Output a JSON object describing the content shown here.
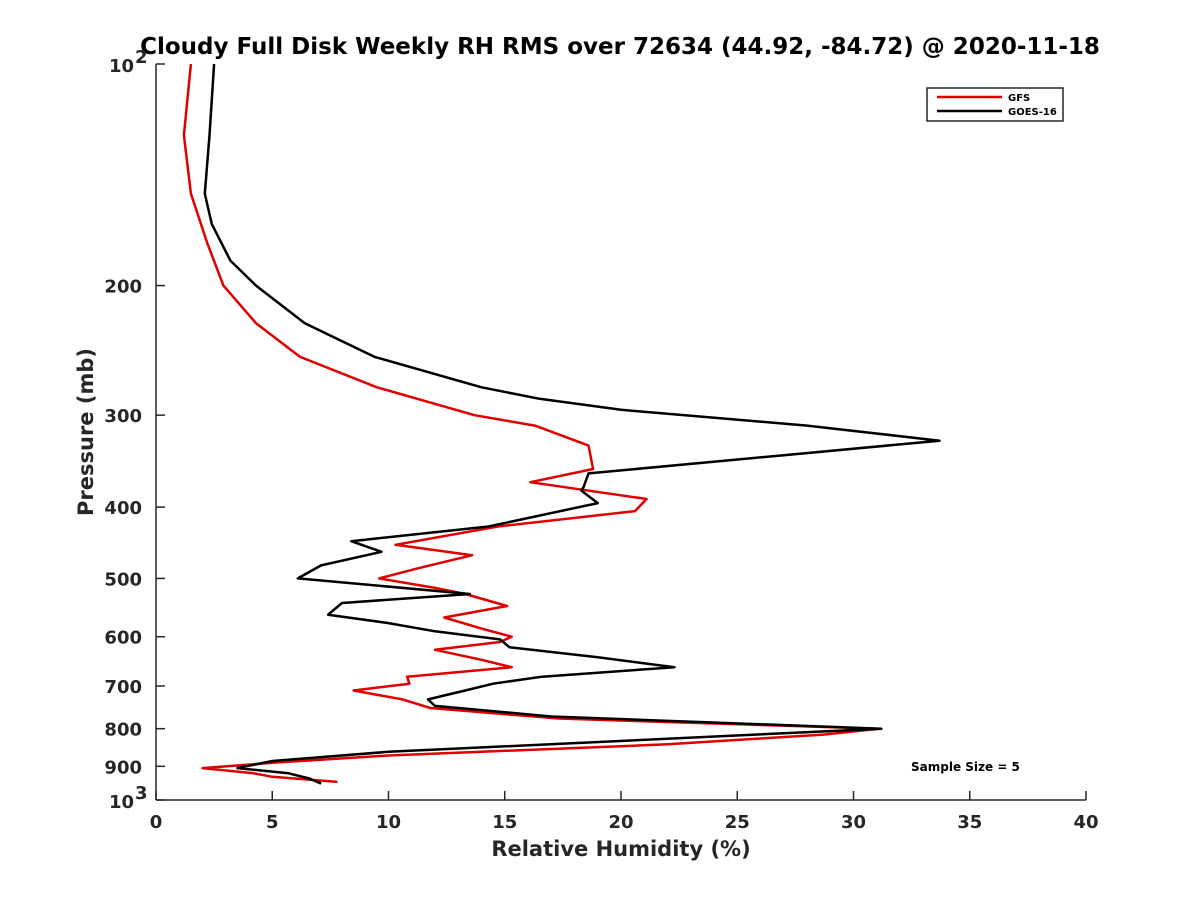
{
  "chart_data": {
    "type": "line",
    "title": "Cloudy Full Disk Weekly RH RMS over 72634 (44.92, -84.72) @ 2020-11-18",
    "xlabel": "Relative Humidity (%)",
    "ylabel": "Pressure (mb)",
    "xlim": [
      0,
      40
    ],
    "ylim": [
      100,
      1000
    ],
    "y_scale": "log",
    "y_reversed": true,
    "grid": false,
    "legend_position": "top-right",
    "x_ticks": [
      "0",
      "5",
      "10",
      "15",
      "20",
      "25",
      "30",
      "35",
      "40"
    ],
    "y_ticks": [
      {
        "value": 100,
        "base": "10",
        "exp": "2"
      },
      {
        "value": 200,
        "label": "200"
      },
      {
        "value": 300,
        "label": "300"
      },
      {
        "value": 400,
        "label": "400"
      },
      {
        "value": 500,
        "label": "500"
      },
      {
        "value": 600,
        "label": "600"
      },
      {
        "value": 700,
        "label": "700"
      },
      {
        "value": 800,
        "label": "800"
      },
      {
        "value": 900,
        "label": "900"
      },
      {
        "value": 1000,
        "base": "10",
        "exp": "3"
      }
    ],
    "annotation": "Sample Size = 5",
    "series": [
      {
        "name": "GFS",
        "color": "#e00000",
        "points": [
          [
            1.5,
            100
          ],
          [
            1.2,
            125
          ],
          [
            1.5,
            150
          ],
          [
            2.2,
            175
          ],
          [
            2.9,
            200
          ],
          [
            4.3,
            225
          ],
          [
            6.2,
            250
          ],
          [
            9.5,
            275
          ],
          [
            13.7,
            300
          ],
          [
            16.3,
            310
          ],
          [
            18.6,
            330
          ],
          [
            18.8,
            355
          ],
          [
            16.1,
            370
          ],
          [
            21.1,
            390
          ],
          [
            20.6,
            405
          ],
          [
            14.7,
            425
          ],
          [
            10.3,
            450
          ],
          [
            13.6,
            465
          ],
          [
            11.2,
            485
          ],
          [
            9.6,
            500
          ],
          [
            12.0,
            515
          ],
          [
            13.3,
            525
          ],
          [
            15.1,
            545
          ],
          [
            12.4,
            565
          ],
          [
            14.0,
            585
          ],
          [
            15.3,
            600
          ],
          [
            14.8,
            610
          ],
          [
            12.0,
            625
          ],
          [
            14.0,
            645
          ],
          [
            15.3,
            660
          ],
          [
            10.8,
            680
          ],
          [
            10.9,
            695
          ],
          [
            8.5,
            710
          ],
          [
            10.6,
            730
          ],
          [
            11.8,
            750
          ],
          [
            17.3,
            775
          ],
          [
            31.1,
            800
          ],
          [
            28.7,
            815
          ],
          [
            26.0,
            825
          ],
          [
            22.0,
            840
          ],
          [
            10.0,
            870
          ],
          [
            5.0,
            890
          ],
          [
            2.0,
            905
          ],
          [
            4.2,
            920
          ],
          [
            5.0,
            930
          ],
          [
            7.8,
            945
          ]
        ]
      },
      {
        "name": "GOES-16",
        "color": "#000000",
        "points": [
          [
            2.5,
            100
          ],
          [
            2.3,
            125
          ],
          [
            2.1,
            150
          ],
          [
            2.4,
            165
          ],
          [
            3.2,
            185
          ],
          [
            4.3,
            200
          ],
          [
            6.4,
            225
          ],
          [
            9.4,
            250
          ],
          [
            14.0,
            275
          ],
          [
            16.5,
            285
          ],
          [
            20.0,
            295
          ],
          [
            28.0,
            310
          ],
          [
            33.7,
            325
          ],
          [
            27.0,
            340
          ],
          [
            18.6,
            360
          ],
          [
            18.4,
            375
          ],
          [
            18.3,
            380
          ],
          [
            19.0,
            395
          ],
          [
            14.3,
            425
          ],
          [
            8.4,
            445
          ],
          [
            9.7,
            460
          ],
          [
            7.1,
            480
          ],
          [
            6.1,
            500
          ],
          [
            13.5,
            525
          ],
          [
            8.0,
            540
          ],
          [
            7.4,
            560
          ],
          [
            10.0,
            575
          ],
          [
            12.0,
            590
          ],
          [
            14.8,
            605
          ],
          [
            15.2,
            620
          ],
          [
            19.0,
            640
          ],
          [
            22.3,
            660
          ],
          [
            16.6,
            680
          ],
          [
            14.5,
            695
          ],
          [
            13.3,
            710
          ],
          [
            11.7,
            730
          ],
          [
            12.0,
            745
          ],
          [
            17.0,
            770
          ],
          [
            31.2,
            800
          ],
          [
            10.0,
            860
          ],
          [
            5.0,
            885
          ],
          [
            3.5,
            905
          ],
          [
            5.7,
            920
          ],
          [
            6.6,
            935
          ],
          [
            7.1,
            950
          ]
        ]
      }
    ]
  }
}
